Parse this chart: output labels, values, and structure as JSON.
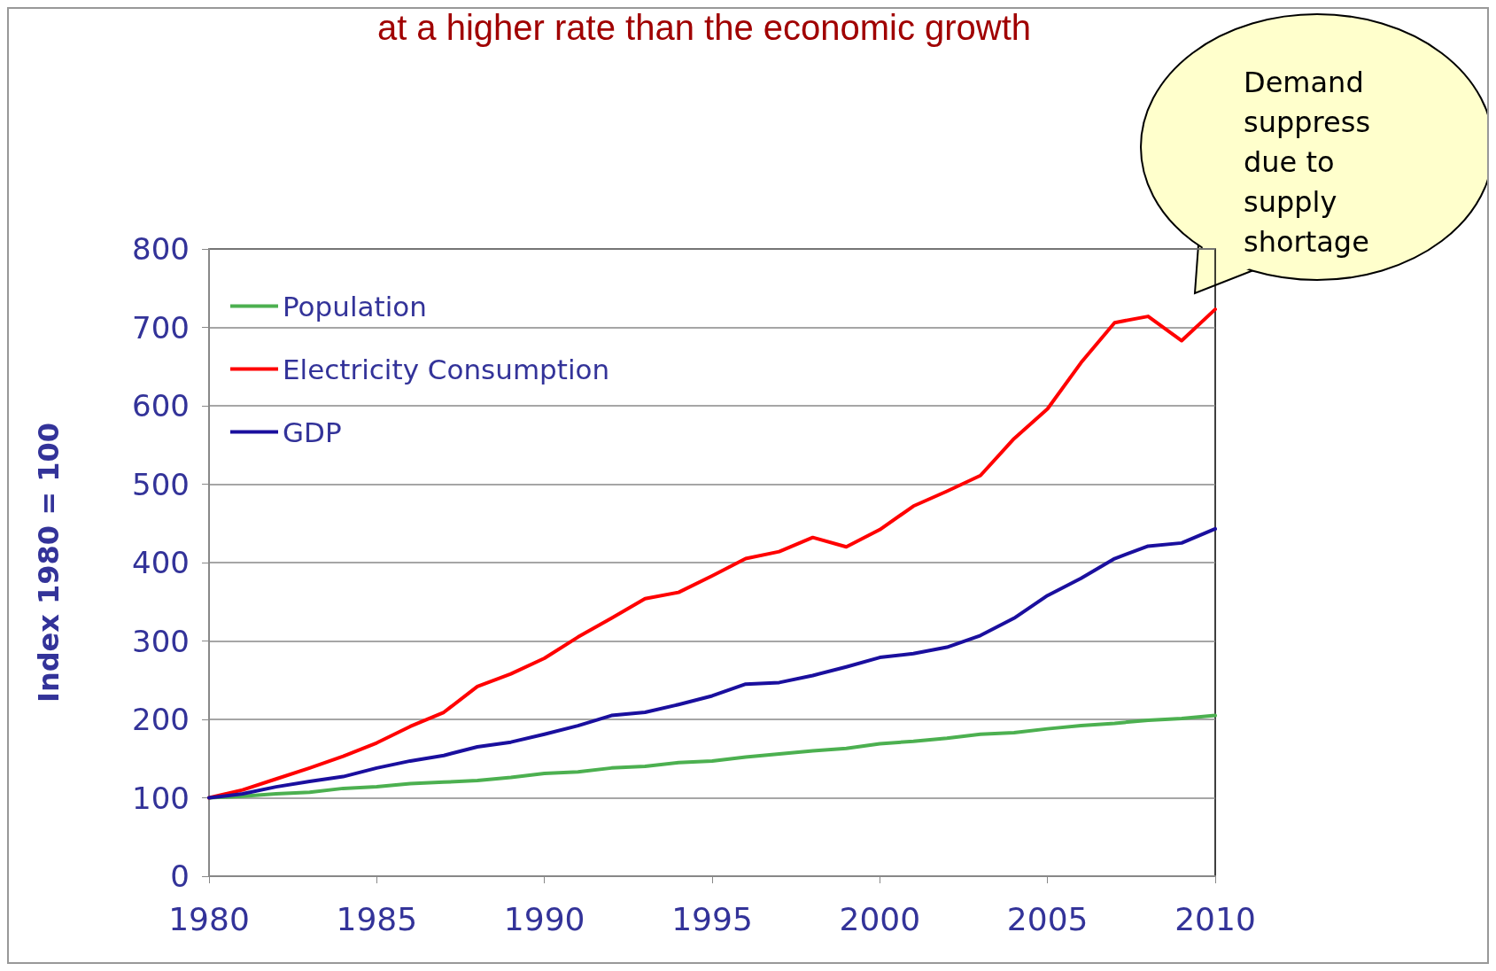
{
  "chart_data": {
    "type": "line",
    "title": "at a higher rate than the economic growth",
    "ylabel": "Index 1980 = 100",
    "x": [
      1980,
      1981,
      1982,
      1983,
      1984,
      1985,
      1986,
      1987,
      1988,
      1989,
      1990,
      1991,
      1992,
      1993,
      1994,
      1995,
      1996,
      1997,
      1998,
      1999,
      2000,
      2001,
      2002,
      2003,
      2004,
      2005,
      2006,
      2007,
      2008,
      2009,
      2010
    ],
    "series": [
      {
        "name": "Population",
        "color": "#4cb050",
        "values": [
          100,
          102,
          105,
          107,
          112,
          114,
          118,
          120,
          122,
          126,
          131,
          133,
          138,
          140,
          145,
          147,
          152,
          156,
          160,
          163,
          169,
          172,
          176,
          181,
          183,
          188,
          192,
          195,
          199,
          201,
          205
        ]
      },
      {
        "name": "Electricity Consumption",
        "color": "#ff0000",
        "values": [
          100,
          110,
          124,
          138,
          153,
          170,
          191,
          209,
          242,
          258,
          278,
          305,
          329,
          354,
          362,
          383,
          405,
          414,
          432,
          420,
          442,
          472,
          491,
          511,
          558,
          596,
          655,
          706,
          714,
          683,
          723
        ]
      },
      {
        "name": "GDP",
        "color": "#1a0f9e",
        "values": [
          100,
          105,
          114,
          121,
          127,
          138,
          147,
          154,
          165,
          171,
          181,
          192,
          205,
          209,
          219,
          230,
          245,
          247,
          256,
          267,
          279,
          284,
          292,
          307,
          329,
          358,
          380,
          405,
          421,
          425,
          443
        ]
      }
    ],
    "xlim": [
      1980,
      2010
    ],
    "xticks": [
      1980,
      1985,
      1990,
      1995,
      2000,
      2005,
      2010
    ],
    "ylim": [
      0,
      800
    ],
    "yticks": [
      0,
      100,
      200,
      300,
      400,
      500,
      600,
      700,
      800
    ],
    "grid": "y",
    "legend": "top left",
    "marker": "none",
    "line_style": "solid",
    "annotations": [
      "Demand suppress due to supply shortage"
    ]
  }
}
